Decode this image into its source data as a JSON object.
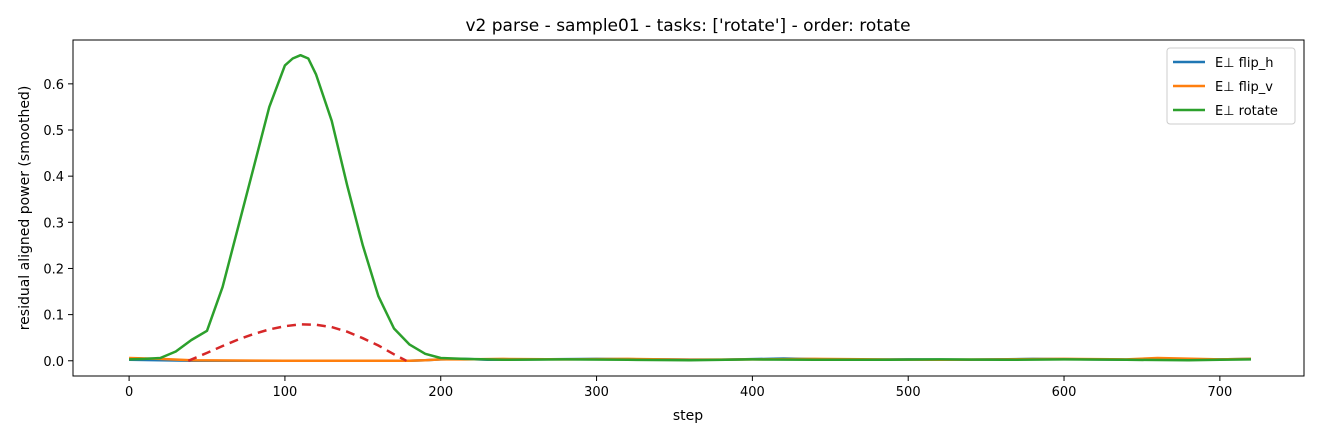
{
  "chart_data": {
    "type": "line",
    "title": "v2 parse - sample01 - tasks: ['rotate'] - order: rotate",
    "xlabel": "step",
    "ylabel": "residual aligned power (smoothed)",
    "xlim": [
      -36,
      754
    ],
    "ylim": [
      -0.033,
      0.695
    ],
    "xticks": [
      0,
      100,
      200,
      300,
      400,
      500,
      600,
      700
    ],
    "yticks": [
      0.0,
      0.1,
      0.2,
      0.3,
      0.4,
      0.5,
      0.6
    ],
    "legend_position": "top-right",
    "series": [
      {
        "name": "E⊥ flip_h",
        "color": "#1f77b4",
        "x": [
          0,
          20,
          40,
          100,
          150,
          180,
          190,
          200,
          215,
          230,
          260,
          300,
          340,
          380,
          420,
          460,
          500,
          540,
          580,
          620,
          660,
          700,
          720
        ],
        "y": [
          0.002,
          0.001,
          0.0,
          0.0,
          0.0,
          0.0,
          0.001,
          0.003,
          0.004,
          0.002,
          0.003,
          0.004,
          0.003,
          0.002,
          0.005,
          0.002,
          0.003,
          0.002,
          0.004,
          0.003,
          0.002,
          0.003,
          0.004
        ]
      },
      {
        "name": "E⊥ flip_v",
        "color": "#ff7f0e",
        "x": [
          0,
          20,
          40,
          100,
          150,
          180,
          190,
          200,
          215,
          240,
          280,
          320,
          360,
          400,
          440,
          480,
          520,
          560,
          600,
          640,
          660,
          700,
          720
        ],
        "y": [
          0.006,
          0.004,
          0.001,
          0.0,
          0.0,
          0.0,
          0.001,
          0.003,
          0.003,
          0.004,
          0.003,
          0.004,
          0.002,
          0.003,
          0.004,
          0.003,
          0.002,
          0.003,
          0.004,
          0.003,
          0.006,
          0.003,
          0.004
        ]
      },
      {
        "name": "E⊥ rotate",
        "color": "#2ca02c",
        "x": [
          0,
          10,
          20,
          30,
          40,
          50,
          60,
          70,
          80,
          90,
          100,
          105,
          110,
          115,
          120,
          130,
          140,
          150,
          160,
          170,
          180,
          190,
          200,
          215,
          240,
          280,
          320,
          360,
          400,
          440,
          480,
          520,
          560,
          600,
          640,
          680,
          700,
          720
        ],
        "y": [
          0.003,
          0.004,
          0.006,
          0.02,
          0.045,
          0.065,
          0.16,
          0.29,
          0.42,
          0.55,
          0.64,
          0.655,
          0.662,
          0.655,
          0.62,
          0.52,
          0.38,
          0.25,
          0.14,
          0.07,
          0.035,
          0.015,
          0.006,
          0.004,
          0.002,
          0.003,
          0.002,
          0.001,
          0.003,
          0.002,
          0.002,
          0.003,
          0.002,
          0.003,
          0.002,
          0.001,
          0.002,
          0.003
        ]
      }
    ],
    "extra_lines": [
      {
        "style": "dashed",
        "color": "#d62728",
        "x": [
          38,
          50,
          60,
          70,
          80,
          90,
          100,
          110,
          120,
          130,
          140,
          150,
          160,
          170,
          178
        ],
        "y": [
          0.0,
          0.017,
          0.032,
          0.046,
          0.058,
          0.068,
          0.075,
          0.079,
          0.078,
          0.073,
          0.063,
          0.049,
          0.033,
          0.014,
          0.0
        ]
      }
    ]
  }
}
